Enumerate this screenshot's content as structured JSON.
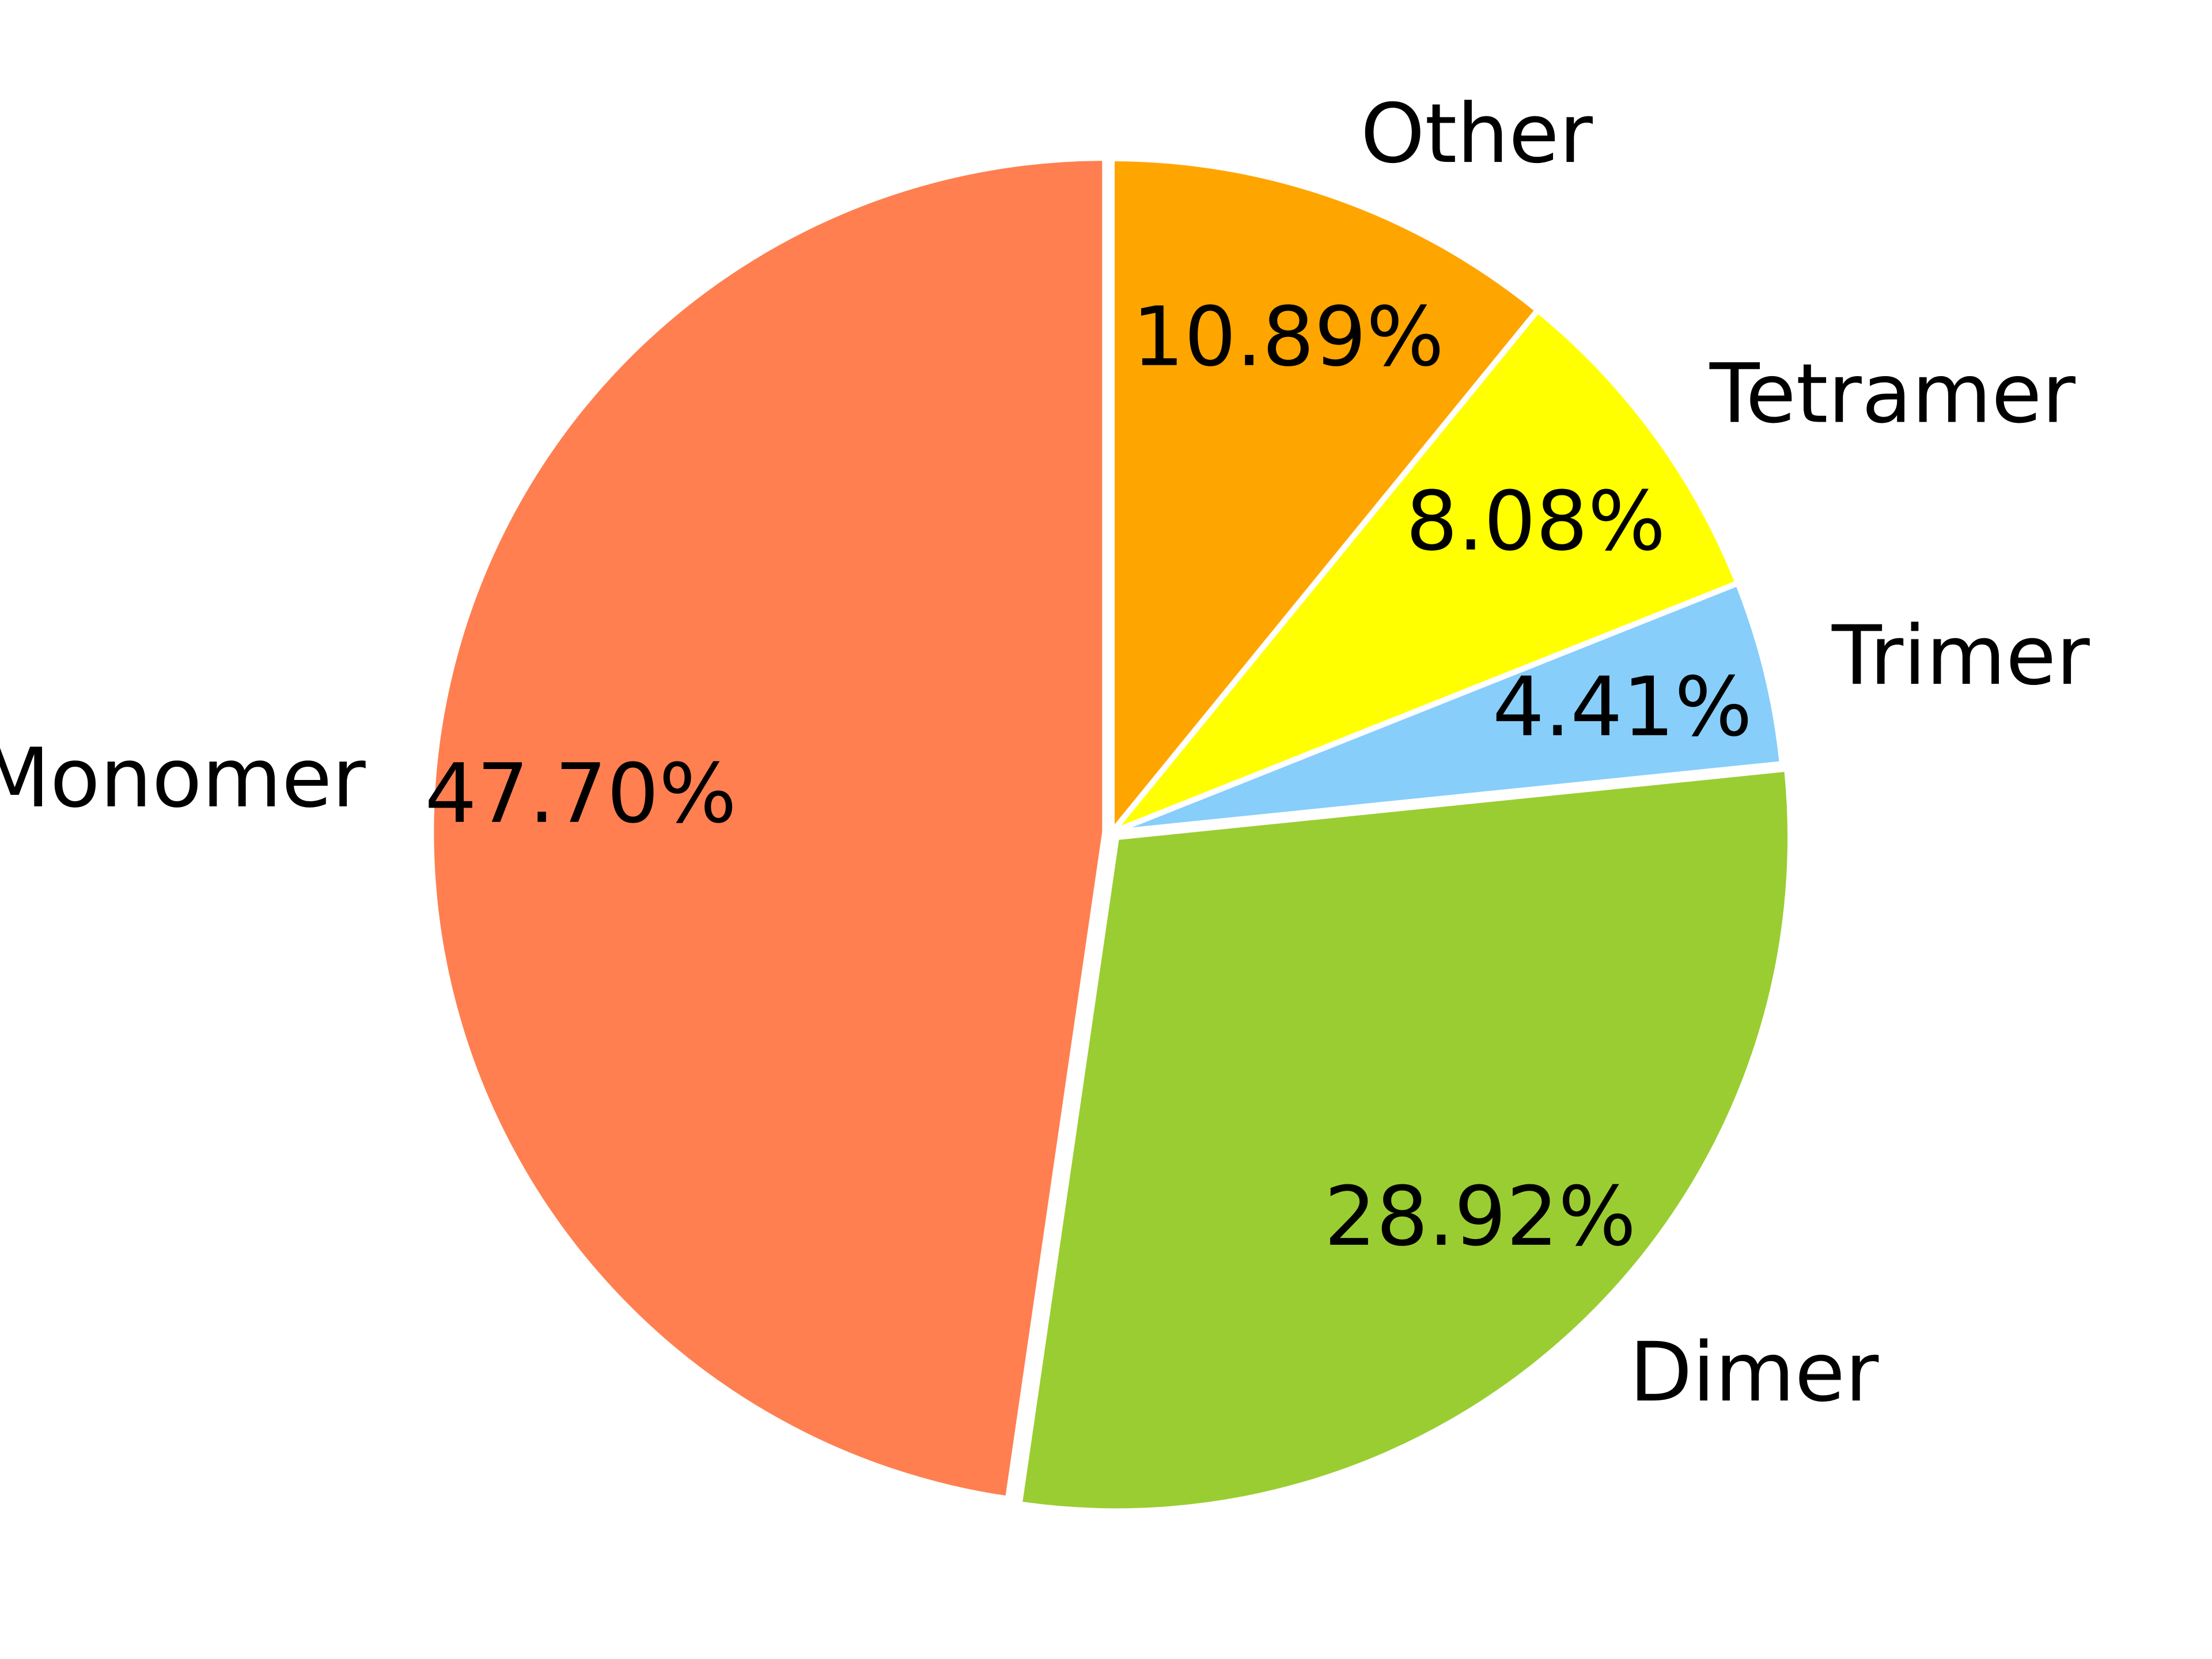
{
  "chart_data": {
    "type": "pie",
    "title": "",
    "start_angle_deg": 90,
    "direction": "counterclockwise",
    "slices": [
      {
        "label": "Monomer",
        "value": 47.7,
        "pct_label": "47.70%",
        "color": "#FF7F50",
        "explode": 0.01
      },
      {
        "label": "Dimer",
        "value": 28.92,
        "pct_label": "28.92%",
        "color": "#9ACD32",
        "explode": 0.01
      },
      {
        "label": "Trimer",
        "value": 4.41,
        "pct_label": "4.41%",
        "color": "#87CEFA",
        "explode": 0.0
      },
      {
        "label": "Tetramer",
        "value": 8.08,
        "pct_label": "8.08%",
        "color": "#FFFF00",
        "explode": 0.0
      },
      {
        "label": "Other",
        "value": 10.89,
        "pct_label": "10.89%",
        "color": "#FFA500",
        "explode": 0.0
      }
    ]
  }
}
